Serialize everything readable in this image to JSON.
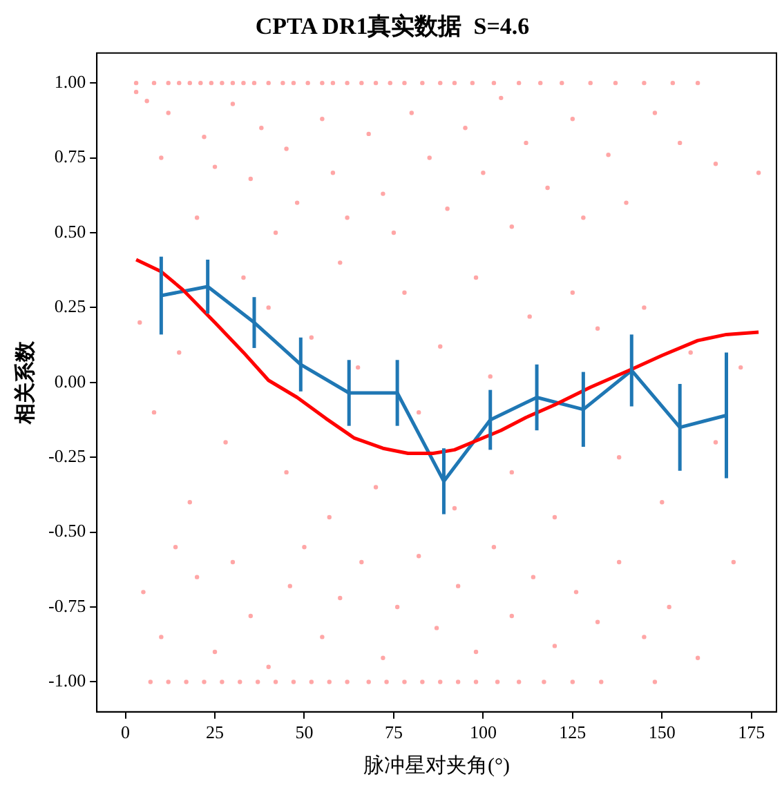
{
  "chart_data": {
    "type": "scatter",
    "title": "CPTA DR1真实数据  S=4.6",
    "xlabel": "脉冲星对夹角(°)",
    "ylabel": "相关系数",
    "xlim": [
      -8,
      182
    ],
    "xticks": [
      0,
      25,
      50,
      75,
      100,
      125,
      150,
      175
    ],
    "ylim": [
      -1.1,
      1.1
    ],
    "yticks": [
      {
        "value": -1,
        "label": "-1.00"
      },
      {
        "value": -0.75,
        "label": "-0.75"
      },
      {
        "value": -0.5,
        "label": "-0.50"
      },
      {
        "value": -0.25,
        "label": "-0.25"
      },
      {
        "value": 0,
        "label": "0.00"
      },
      {
        "value": 0.25,
        "label": "0.25"
      },
      {
        "value": 0.5,
        "label": "0.50"
      },
      {
        "value": 0.75,
        "label": "0.75"
      },
      {
        "value": 1,
        "label": "1.00"
      }
    ],
    "grid": false,
    "legend": false,
    "series": [
      {
        "color": "#ff0000",
        "marker": "circle",
        "x": [
          3,
          8,
          12,
          15,
          18,
          21,
          24,
          27,
          30,
          33,
          36,
          40,
          44,
          47,
          51,
          55,
          58,
          62,
          66,
          70,
          74,
          78,
          83,
          88,
          92,
          97,
          103,
          110,
          116,
          122,
          130,
          137,
          145,
          153,
          160,
          7,
          12,
          17,
          22,
          27,
          32,
          37,
          42,
          47,
          52,
          57,
          62,
          68,
          73,
          78,
          83,
          88,
          93,
          98,
          104,
          110,
          117,
          125,
          133,
          148,
          3,
          6,
          12,
          10,
          22,
          25,
          30,
          35,
          38,
          45,
          48,
          55,
          58,
          62,
          68,
          72,
          80,
          85,
          90,
          95,
          100,
          105,
          108,
          112,
          118,
          125,
          128,
          135,
          140,
          148,
          155,
          165,
          177,
          20,
          42,
          75,
          4,
          8,
          15,
          18,
          28,
          33,
          40,
          45,
          52,
          57,
          60,
          65,
          70,
          78,
          82,
          88,
          92,
          98,
          102,
          108,
          113,
          120,
          125,
          132,
          138,
          145,
          150,
          158,
          165,
          172,
          5,
          10,
          14,
          20,
          25,
          30,
          35,
          40,
          46,
          50,
          55,
          60,
          66,
          72,
          76,
          82,
          87,
          93,
          98,
          103,
          108,
          114,
          120,
          126,
          132,
          138,
          145,
          152,
          160,
          170
        ],
        "values": [
          1,
          1,
          1,
          1,
          1,
          1,
          1,
          1,
          1,
          1,
          1,
          1,
          1,
          1,
          1,
          1,
          1,
          1,
          1,
          1,
          1,
          1,
          1,
          1,
          1,
          1,
          1,
          1,
          1,
          1,
          1,
          1,
          1,
          1,
          1,
          -1,
          -1,
          -1,
          -1,
          -1,
          -1,
          -1,
          -1,
          -1,
          -1,
          -1,
          -1,
          -1,
          -1,
          -1,
          -1,
          -1,
          -1,
          -1,
          -1,
          -1,
          -1,
          -1,
          -1,
          -1,
          0.97,
          0.94,
          0.9,
          0.75,
          0.82,
          0.72,
          0.93,
          0.68,
          0.85,
          0.78,
          0.6,
          0.88,
          0.7,
          0.55,
          0.83,
          0.63,
          0.9,
          0.75,
          0.58,
          0.85,
          0.7,
          0.95,
          0.52,
          0.8,
          0.65,
          0.88,
          0.55,
          0.76,
          0.6,
          0.9,
          0.8,
          0.73,
          0.7,
          0.55,
          0.5,
          0.5,
          0.2,
          -0.1,
          0.1,
          -0.4,
          -0.2,
          0.35,
          0.25,
          -0.3,
          0.15,
          -0.45,
          0.4,
          0.05,
          -0.35,
          0.3,
          -0.1,
          0.12,
          -0.42,
          0.35,
          0.02,
          -0.3,
          0.22,
          -0.45,
          0.3,
          0.18,
          -0.25,
          0.25,
          -0.4,
          0.1,
          -0.2,
          0.05,
          -0.7,
          -0.85,
          -0.55,
          -0.65,
          -0.9,
          -0.6,
          -0.78,
          -0.95,
          -0.68,
          -0.55,
          -0.85,
          -0.72,
          -0.6,
          -0.92,
          -0.75,
          -0.58,
          -0.82,
          -0.68,
          -0.9,
          -0.55,
          -0.78,
          -0.65,
          -0.88,
          -0.7,
          -0.8,
          -0.6,
          -0.85,
          -0.75,
          -0.92,
          -0.6
        ]
      },
      {
        "type": "line",
        "color": "#ff0000",
        "marker": "none",
        "line_style": "solid",
        "x": [
          3,
          10,
          16,
          25,
          33,
          40,
          48,
          56,
          64,
          72,
          79,
          86,
          92,
          97,
          105,
          112,
          120,
          130,
          141.5,
          150,
          160,
          168,
          177
        ],
        "values": [
          0.41,
          0.37,
          0.31,
          0.2,
          0.1,
          0.007,
          -0.05,
          -0.12,
          -0.186,
          -0.22,
          -0.237,
          -0.237,
          -0.225,
          -0.2,
          -0.16,
          -0.117,
          -0.075,
          -0.016,
          0.044,
          0.09,
          0.14,
          0.16,
          0.168
        ]
      },
      {
        "type": "line",
        "color": "#1f77b4",
        "marker": "none",
        "line_style": "solid",
        "x": [
          10,
          23,
          36,
          49,
          62.5,
          76,
          89,
          102,
          115,
          128,
          141.5,
          155,
          168
        ],
        "values": [
          0.29,
          0.32,
          0.2,
          0.06,
          -0.035,
          -0.035,
          -0.33,
          -0.125,
          -0.05,
          -0.09,
          0.04,
          -0.15,
          -0.11
        ],
        "errors": [
          0.13,
          0.09,
          0.085,
          0.09,
          0.11,
          0.11,
          0.11,
          0.1,
          0.11,
          0.125,
          0.12,
          0.145,
          0.21
        ]
      }
    ]
  }
}
